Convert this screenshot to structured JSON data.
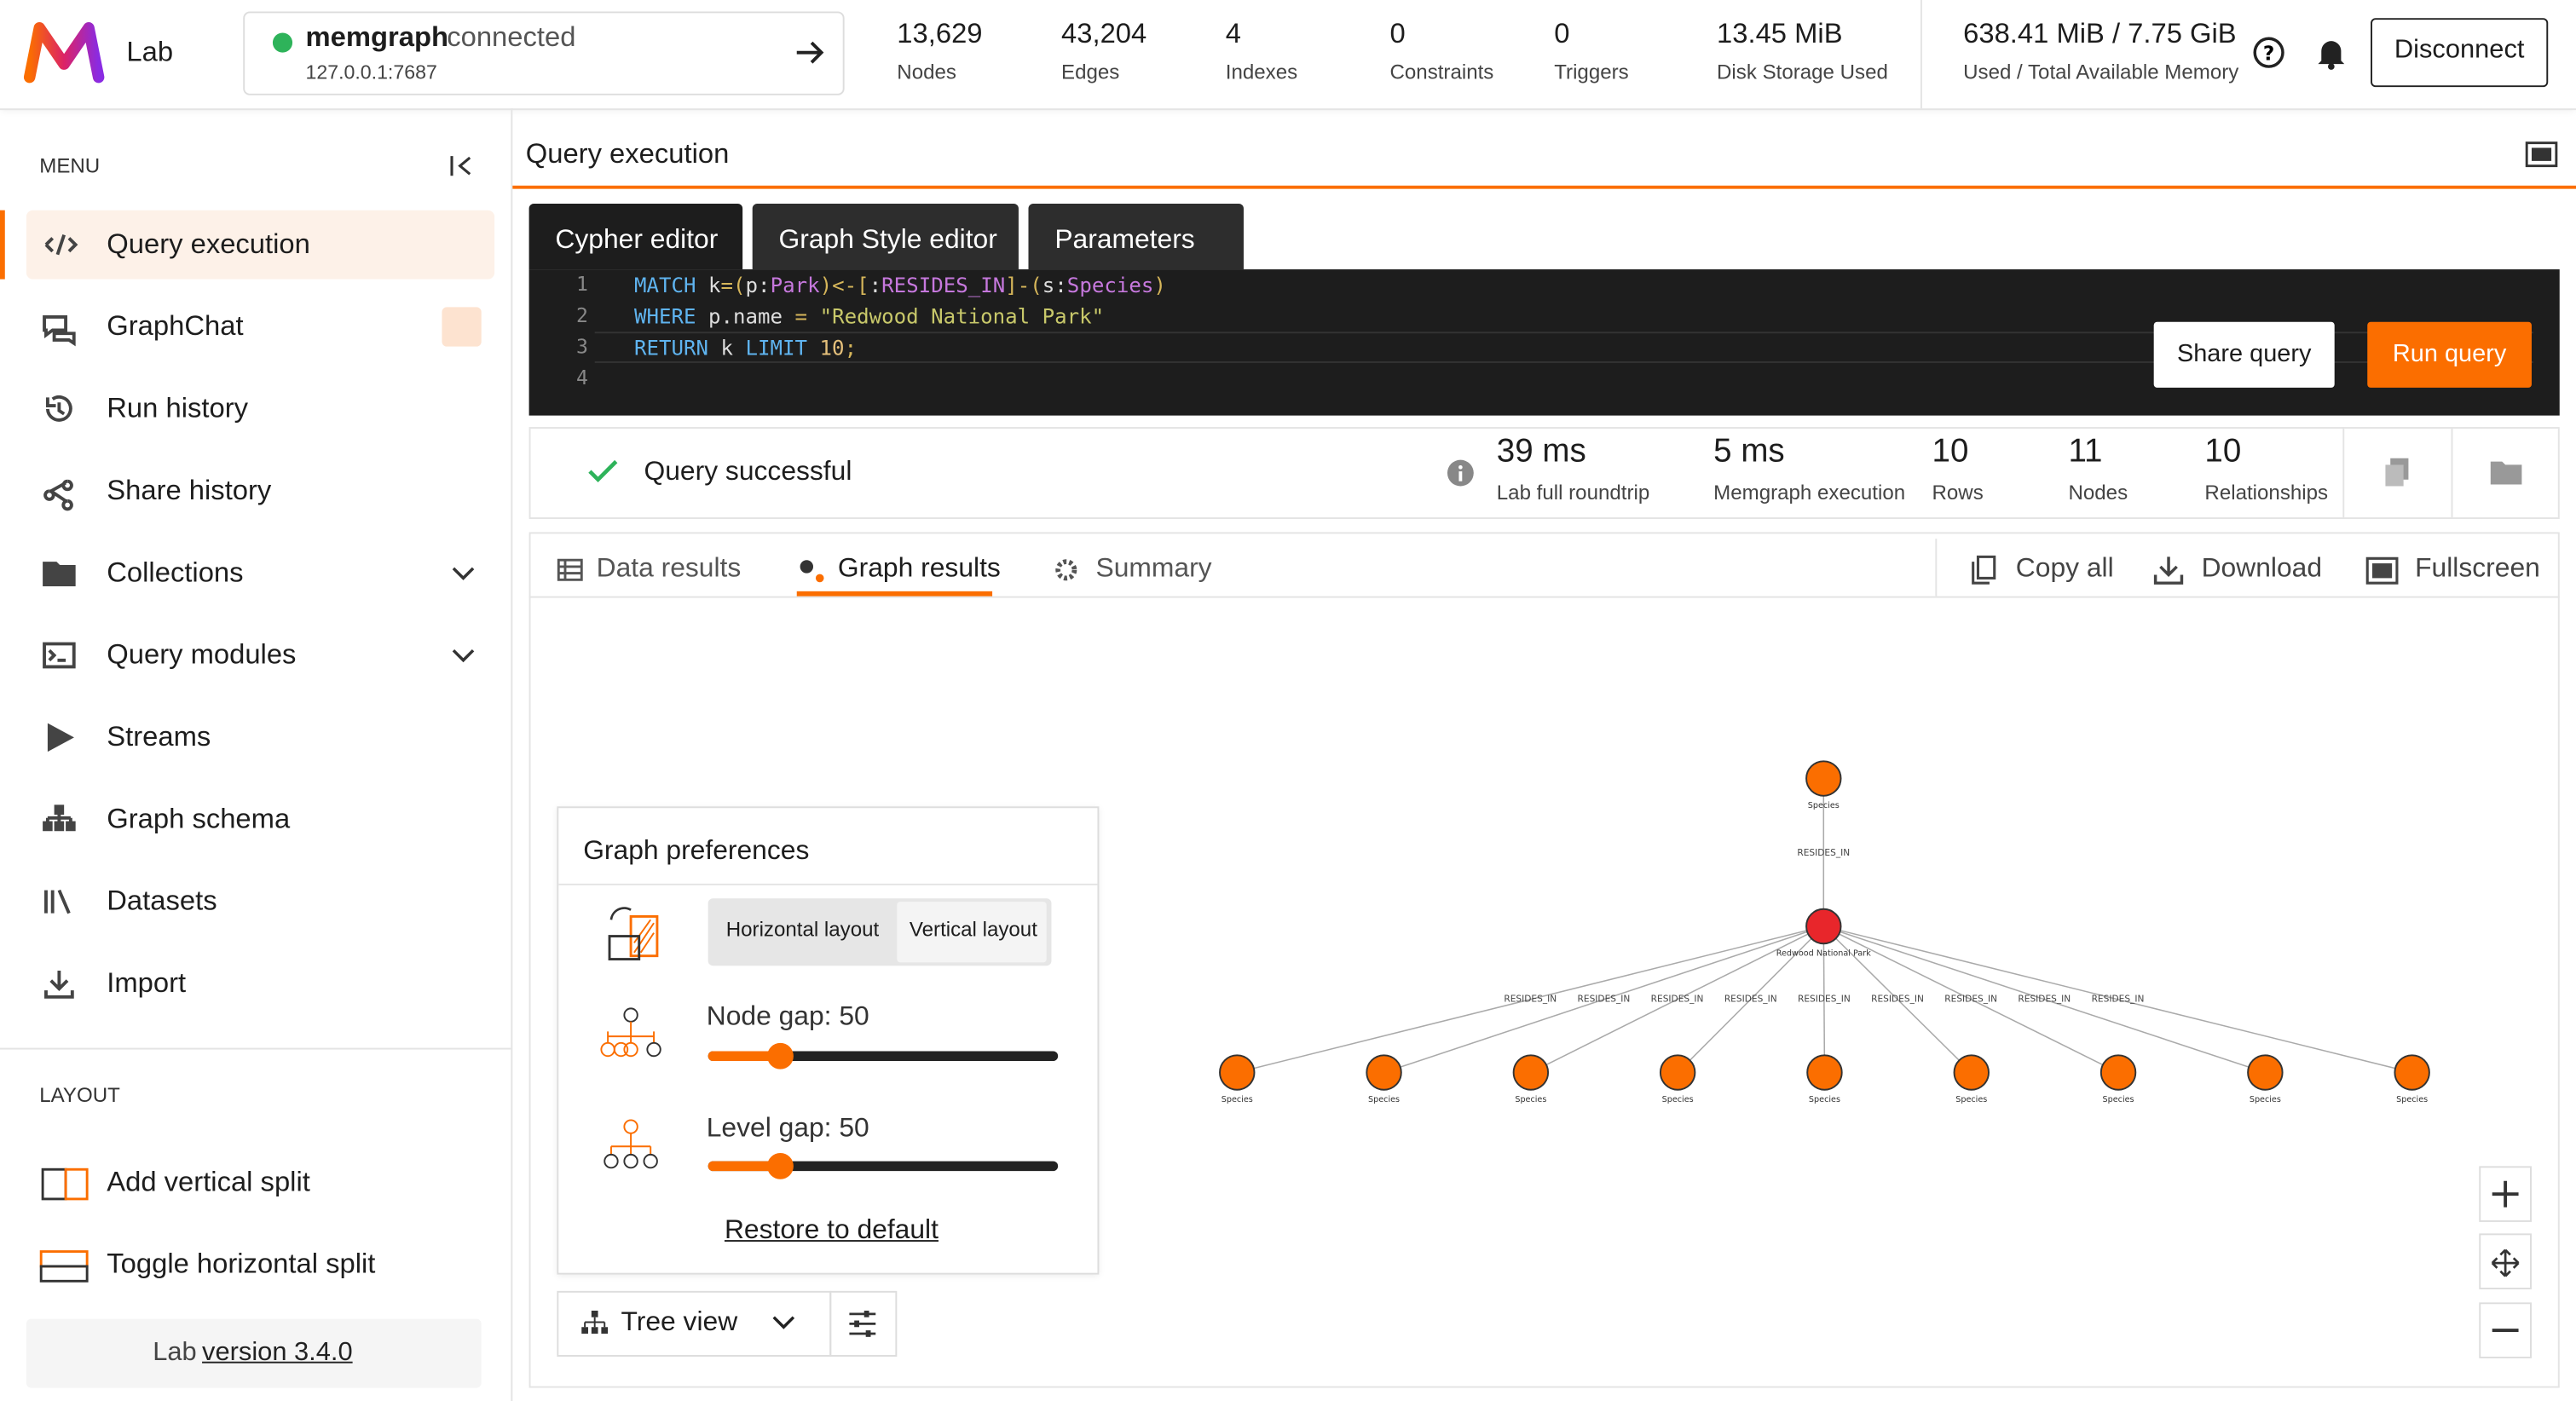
{
  "header": {
    "logo_text": "Lab",
    "connection": {
      "name": "memgraph",
      "status": "connected",
      "address": "127.0.0.1:7687"
    },
    "stats": [
      {
        "value": "13,629",
        "label": "Nodes"
      },
      {
        "value": "43,204",
        "label": "Edges"
      },
      {
        "value": "4",
        "label": "Indexes"
      },
      {
        "value": "0",
        "label": "Constraints"
      },
      {
        "value": "0",
        "label": "Triggers"
      },
      {
        "value": "13.45 MiB",
        "label": "Disk Storage Used"
      },
      {
        "value": "638.41 MiB / 7.75 GiB",
        "label": "Used / Total Available Memory"
      }
    ],
    "disconnect": "Disconnect"
  },
  "sidebar": {
    "menu_title": "MENU",
    "menu": [
      "Query execution",
      "GraphChat",
      "Run history",
      "Share history",
      "Collections",
      "Query modules",
      "Streams",
      "Graph schema",
      "Datasets",
      "Import"
    ],
    "layout_title": "LAYOUT",
    "layout": [
      "Add vertical split",
      "Toggle horizontal split"
    ],
    "footer": {
      "prefix": "Lab",
      "version": "version 3.4.0"
    }
  },
  "main": {
    "title": "Query execution",
    "editor_tabs": [
      "Cypher editor",
      "Graph Style editor",
      "Parameters"
    ],
    "line_numbers": [
      "1",
      "2",
      "3",
      "4"
    ],
    "code": [
      "MATCH k=(p:Park)<-[:RESIDES_IN]-(s:Species)",
      "WHERE p.name = \"Redwood National Park\"",
      "RETURN k LIMIT 10;"
    ],
    "buttons": [
      "Share query",
      "Run query"
    ],
    "status": {
      "message": "Query successful",
      "metrics": [
        {
          "value": "39 ms",
          "label": "Lab full roundtrip"
        },
        {
          "value": "5 ms",
          "label": "Memgraph execution"
        },
        {
          "value": "10",
          "label": "Rows"
        },
        {
          "value": "11",
          "label": "Nodes"
        },
        {
          "value": "10",
          "label": "Relationships"
        }
      ]
    },
    "result_tabs": [
      "Data results",
      "Graph results",
      "Summary"
    ],
    "result_actions": [
      "Copy all",
      "Download",
      "Fullscreen"
    ],
    "graph": {
      "nodes": [
        "Species",
        "Redwood National Park",
        "Species",
        "Species",
        "Species",
        "Species",
        "Species",
        "Species",
        "Species",
        "Species",
        "Species"
      ],
      "edges": [
        "RESIDES_IN",
        "RESIDES_IN",
        "RESIDES_IN",
        "RESIDES_IN",
        "RESIDES_IN",
        "RESIDES_IN",
        "RESIDES_IN",
        "RESIDES_IN",
        "RESIDES_IN",
        "RESIDES_IN"
      ]
    },
    "preferences": {
      "title": "Graph preferences",
      "layouts": [
        "Horizontal layout",
        "Vertical layout"
      ],
      "node_gap": "Node gap: 50",
      "level_gap": "Level gap: 50",
      "restore": "Restore to default"
    },
    "view": "Tree view"
  }
}
